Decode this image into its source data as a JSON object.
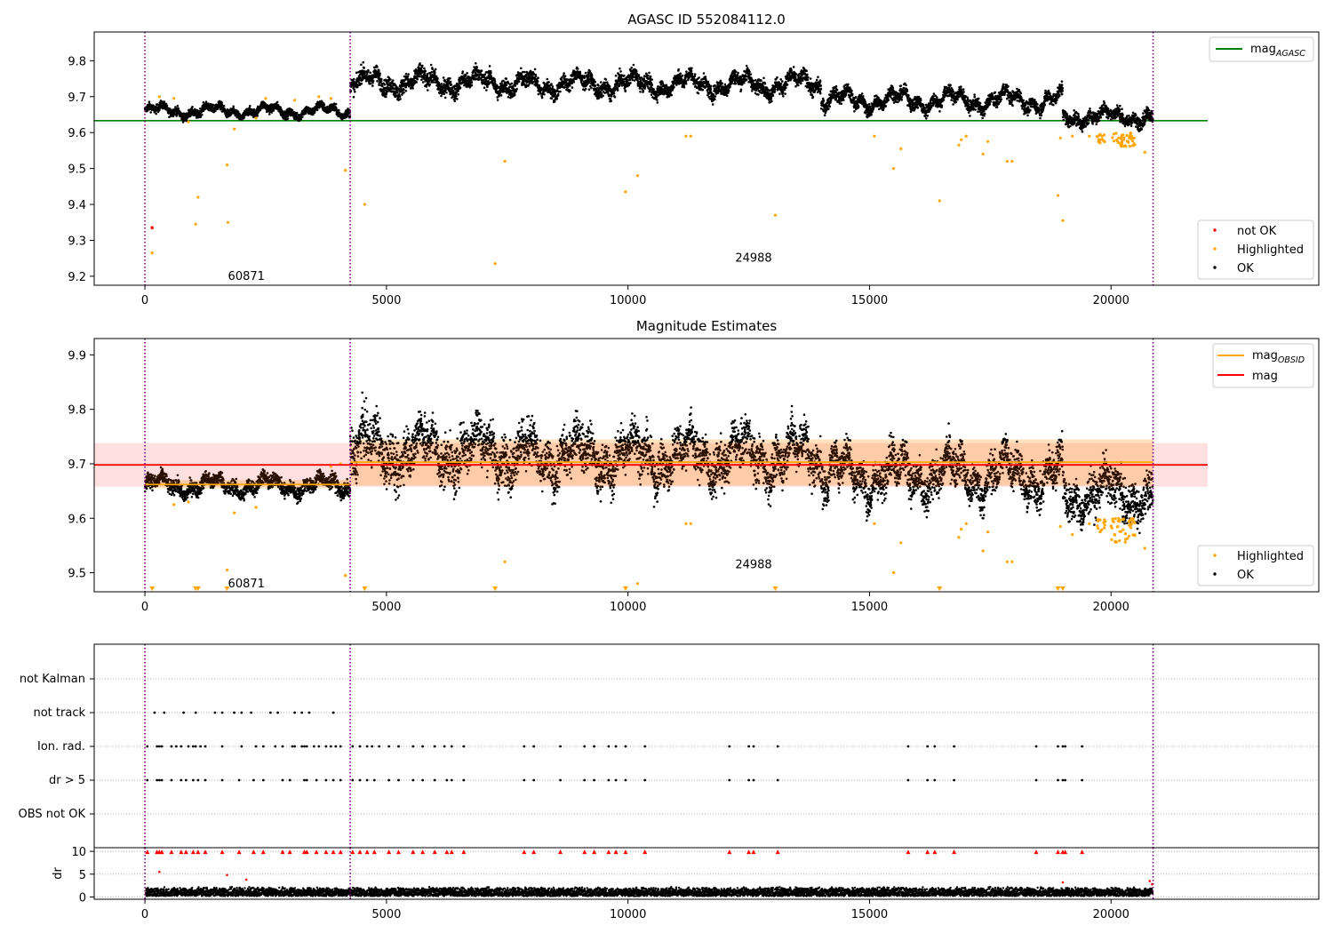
{
  "chart_data": [
    {
      "type": "scatter",
      "title": "AGASC ID 552084112.0",
      "xlim": [
        -1050,
        24300
      ],
      "ylim": [
        9.175,
        9.88
      ],
      "x_ticks": [
        0,
        5000,
        10000,
        15000,
        20000
      ],
      "x_tick_labels": [
        "0",
        "5000",
        "10000",
        "15000",
        "20000"
      ],
      "y_ticks": [
        9.2,
        9.3,
        9.4,
        9.5,
        9.6,
        9.7,
        9.8
      ],
      "y_tick_labels": [
        "9.2",
        "9.3",
        "9.4",
        "9.5",
        "9.6",
        "9.7",
        "9.8"
      ],
      "obsid_boundaries": [
        0,
        4250,
        20870
      ],
      "obsid_labels": [
        {
          "text": "60871",
          "x": 2100,
          "y": 9.2
        },
        {
          "text": "24988",
          "x": 12600,
          "y": 9.25
        }
      ],
      "lines": [
        {
          "name": "mag_AGASC",
          "legend_main": "mag",
          "legend_sub": "AGASC",
          "color": "#008000",
          "y": 9.633,
          "x_range": [
            -1050,
            22000
          ]
        }
      ],
      "series_colors": {
        "not_ok": "#ff0000",
        "highlighted": "#ffa500",
        "ok": "#000000"
      },
      "segments": [
        {
          "x_range": [
            0,
            4250
          ],
          "mean": 9.66,
          "amp": 0.012,
          "spread": 0.025
        },
        {
          "x_range": [
            4250,
            8000
          ],
          "mean": 9.74,
          "amp": 0.02,
          "spread": 0.05
        },
        {
          "x_range": [
            8000,
            14000
          ],
          "mean": 9.735,
          "amp": 0.02,
          "spread": 0.045
        },
        {
          "x_range": [
            14000,
            19000
          ],
          "mean": 9.69,
          "amp": 0.02,
          "spread": 0.04
        },
        {
          "x_range": [
            19000,
            20870
          ],
          "mean": 9.645,
          "amp": 0.015,
          "spread": 0.04
        }
      ],
      "not_ok_points": [
        [
          150,
          9.335
        ]
      ],
      "highlighted_points": [
        [
          150,
          9.265
        ],
        [
          1100,
          9.42
        ],
        [
          1050,
          9.345
        ],
        [
          1700,
          9.51
        ],
        [
          1720,
          9.35
        ],
        [
          1850,
          9.61
        ],
        [
          4150,
          9.495
        ],
        [
          4550,
          9.4
        ],
        [
          7250,
          9.235
        ],
        [
          7450,
          9.52
        ],
        [
          9950,
          9.435
        ],
        [
          10200,
          9.48
        ],
        [
          11200,
          9.59
        ],
        [
          11300,
          9.59
        ],
        [
          13050,
          9.37
        ],
        [
          15100,
          9.59
        ],
        [
          15500,
          9.5
        ],
        [
          15650,
          9.555
        ],
        [
          16450,
          9.41
        ],
        [
          16850,
          9.565
        ],
        [
          16900,
          9.58
        ],
        [
          17000,
          9.59
        ],
        [
          17350,
          9.54
        ],
        [
          17450,
          9.575
        ],
        [
          17850,
          9.52
        ],
        [
          17950,
          9.52
        ],
        [
          18900,
          9.425
        ],
        [
          19000,
          9.355
        ],
        [
          18950,
          9.585
        ],
        [
          19200,
          9.59
        ],
        [
          19550,
          9.59
        ],
        [
          20700,
          9.545
        ],
        [
          900,
          9.63
        ],
        [
          2500,
          9.695
        ],
        [
          3100,
          9.69
        ],
        [
          3600,
          9.7
        ],
        [
          3850,
          9.695
        ],
        [
          600,
          9.695
        ],
        [
          2300,
          9.64
        ],
        [
          300,
          9.7
        ]
      ],
      "highlighted_clusters": [
        {
          "x_range": [
            19700,
            19900
          ],
          "y_range": [
            9.57,
            9.6
          ],
          "n": 15
        },
        {
          "x_range": [
            20000,
            20500
          ],
          "y_range": [
            9.56,
            9.6
          ],
          "n": 45
        }
      ],
      "legends": [
        {
          "location": "top-right",
          "entries": [
            {
              "label_main": "mag",
              "label_sub": "AGASC",
              "kind": "line",
              "color": "#008000"
            }
          ]
        },
        {
          "location": "bottom-right",
          "entries": [
            {
              "label": "not OK",
              "kind": "point",
              "color": "#ff0000"
            },
            {
              "label": "Highlighted",
              "kind": "point",
              "color": "#ffa500"
            },
            {
              "label": "OK",
              "kind": "point",
              "color": "#000000"
            }
          ]
        }
      ]
    },
    {
      "type": "scatter",
      "title": "Magnitude Estimates",
      "xlim": [
        -1050,
        24300
      ],
      "ylim": [
        9.465,
        9.93
      ],
      "x_ticks": [
        0,
        5000,
        10000,
        15000,
        20000
      ],
      "x_tick_labels": [
        "0",
        "5000",
        "10000",
        "15000",
        "20000"
      ],
      "y_ticks": [
        9.5,
        9.6,
        9.7,
        9.8,
        9.9
      ],
      "y_tick_labels": [
        "9.5",
        "9.6",
        "9.7",
        "9.8",
        "9.9"
      ],
      "obsid_boundaries": [
        0,
        4250,
        20870
      ],
      "obsid_labels": [
        {
          "text": "60871",
          "x": 2100,
          "y": 9.48
        },
        {
          "text": "24988",
          "x": 12600,
          "y": 9.515
        }
      ],
      "bands": [
        {
          "name": "mag",
          "color": "#ff0000",
          "opacity": 0.12,
          "x_range": [
            -1050,
            22000
          ],
          "y_range": [
            9.658,
            9.738
          ]
        },
        {
          "name": "mag_OBSID 60871",
          "color": "#ff8c00",
          "opacity": 0.25,
          "x_range": [
            0,
            4250
          ],
          "y_range": [
            9.655,
            9.67
          ]
        },
        {
          "name": "mag_OBSID 24988",
          "color": "#ff8c00",
          "opacity": 0.25,
          "x_range": [
            4250,
            20870
          ],
          "y_range": [
            9.66,
            9.745
          ]
        }
      ],
      "lines": [
        {
          "name": "mag",
          "color": "#ff0000",
          "y": 9.698,
          "x_range": [
            -1050,
            22000
          ]
        },
        {
          "name": "mag_OBSID 60871",
          "color": "#ffa500",
          "y": 9.662,
          "x_range": [
            0,
            4250
          ]
        },
        {
          "name": "mag_OBSID 24988",
          "color": "#ffa500",
          "y": 9.703,
          "x_range": [
            4250,
            20870
          ]
        }
      ],
      "series_colors": {
        "highlighted": "#ffa500",
        "ok": "#000000",
        "ok_dim": "#2a1000"
      },
      "segments": [
        {
          "x_range": [
            0,
            4250
          ],
          "mean": 9.66,
          "amp": 0.012,
          "spread": 0.03
        },
        {
          "x_range": [
            4250,
            8000
          ],
          "mean": 9.725,
          "amp": 0.03,
          "spread": 0.1
        },
        {
          "x_range": [
            8000,
            14000
          ],
          "mean": 9.715,
          "amp": 0.03,
          "spread": 0.09
        },
        {
          "x_range": [
            14000,
            19000
          ],
          "mean": 9.68,
          "amp": 0.03,
          "spread": 0.08
        },
        {
          "x_range": [
            19000,
            20870
          ],
          "mean": 9.645,
          "amp": 0.025,
          "spread": 0.08
        }
      ],
      "highlighted_points": [
        [
          1700,
          9.505
        ],
        [
          1850,
          9.61
        ],
        [
          4150,
          9.495
        ],
        [
          7450,
          9.52
        ],
        [
          10200,
          9.48
        ],
        [
          11200,
          9.59
        ],
        [
          11300,
          9.59
        ],
        [
          15100,
          9.59
        ],
        [
          15500,
          9.5
        ],
        [
          15650,
          9.555
        ],
        [
          16850,
          9.565
        ],
        [
          16900,
          9.58
        ],
        [
          17000,
          9.59
        ],
        [
          17350,
          9.54
        ],
        [
          17450,
          9.575
        ],
        [
          17850,
          9.52
        ],
        [
          17950,
          9.52
        ],
        [
          18950,
          9.585
        ],
        [
          19200,
          9.57
        ],
        [
          19550,
          9.59
        ],
        [
          20700,
          9.545
        ],
        [
          900,
          9.63
        ],
        [
          2300,
          9.62
        ],
        [
          600,
          9.625
        ],
        [
          4050,
          9.7
        ],
        [
          3850,
          9.695
        ]
      ],
      "highlighted_clusters": [
        {
          "x_range": [
            19700,
            19900
          ],
          "y_range": [
            9.575,
            9.6
          ],
          "n": 15
        },
        {
          "x_range": [
            20000,
            20500
          ],
          "y_range": [
            9.555,
            9.6
          ],
          "n": 45
        }
      ],
      "below_range_markers": [
        150,
        1050,
        1100,
        1700,
        4550,
        7250,
        9950,
        13050,
        16450,
        18900,
        19000
      ],
      "legends": [
        {
          "location": "top-right",
          "entries": [
            {
              "label_main": "mag",
              "label_sub": "OBSID",
              "kind": "line",
              "color": "#ffa500"
            },
            {
              "label": "mag",
              "kind": "line",
              "color": "#ff0000"
            }
          ]
        },
        {
          "location": "bottom-right",
          "entries": [
            {
              "label": "Highlighted",
              "kind": "point",
              "color": "#ffa500"
            },
            {
              "label": "OK",
              "kind": "point",
              "color": "#000000"
            }
          ]
        }
      ]
    },
    {
      "type": "scatter",
      "title": "",
      "xlim": [
        -1050,
        24300
      ],
      "categories": [
        "not Kalman",
        "not track",
        "Ion. rad.",
        "dr > 5",
        "OBS not OK"
      ],
      "obsid_boundaries": [
        0,
        4250,
        20870
      ],
      "flags": {
        "not Kalman": [],
        "not track": [
          200,
          400,
          800,
          1050,
          1450,
          1600,
          1850,
          2000,
          2200,
          2600,
          2750,
          3100,
          3250,
          3400,
          3900
        ],
        "Ion. rad.": [
          50,
          250,
          300,
          350,
          550,
          650,
          750,
          900,
          1000,
          1050,
          1150,
          1250,
          1600,
          2000,
          2300,
          2450,
          2700,
          2850,
          3050,
          3100,
          3250,
          3300,
          3350,
          3500,
          3600,
          3750,
          3850,
          3950,
          4050,
          4300,
          4450,
          4600,
          4700,
          4850,
          5050,
          5250,
          5550,
          5750,
          6000,
          6200,
          6350,
          6600,
          7850,
          8050,
          8600,
          9100,
          9300,
          9600,
          9750,
          9950,
          10350,
          12100,
          12500,
          12600,
          13100,
          15800,
          16200,
          16350,
          16750,
          18450,
          18900,
          19000,
          19050,
          19400
        ],
        "dr > 5": [
          50,
          250,
          300,
          350,
          550,
          750,
          850,
          1000,
          1100,
          1250,
          1600,
          1950,
          2250,
          2450,
          2850,
          3000,
          3300,
          3350,
          3550,
          3750,
          3900,
          4050,
          4300,
          4450,
          4600,
          4750,
          5050,
          5250,
          5550,
          5750,
          6000,
          6250,
          6350,
          6600,
          7850,
          8050,
          8600,
          9100,
          9300,
          9600,
          9750,
          9950,
          10350,
          12100,
          12500,
          12600,
          13100,
          15800,
          16200,
          16350,
          16750,
          18450,
          18900,
          19000,
          19050,
          19400
        ],
        "OBS not OK": []
      },
      "dr": {
        "ylabel": "dr",
        "ylim": [
          -0.5,
          10.8
        ],
        "y_ticks": [
          0,
          5,
          10
        ],
        "y_tick_labels": [
          "0",
          "5",
          "10"
        ],
        "x_ticks": [
          0,
          5000,
          10000,
          15000,
          20000
        ],
        "x_tick_labels": [
          "0",
          "5000",
          "10000",
          "15000",
          "20000"
        ],
        "typical_range": [
          0.2,
          2.2
        ],
        "capped_value": 10,
        "capped_color": "#ff0000",
        "ok_color": "#000000",
        "outliers": [
          [
            300,
            5.5
          ],
          [
            1700,
            4.8
          ],
          [
            2100,
            3.8
          ],
          [
            20800,
            3.5
          ],
          [
            20850,
            2.8
          ],
          [
            19000,
            3.2
          ]
        ]
      }
    }
  ]
}
